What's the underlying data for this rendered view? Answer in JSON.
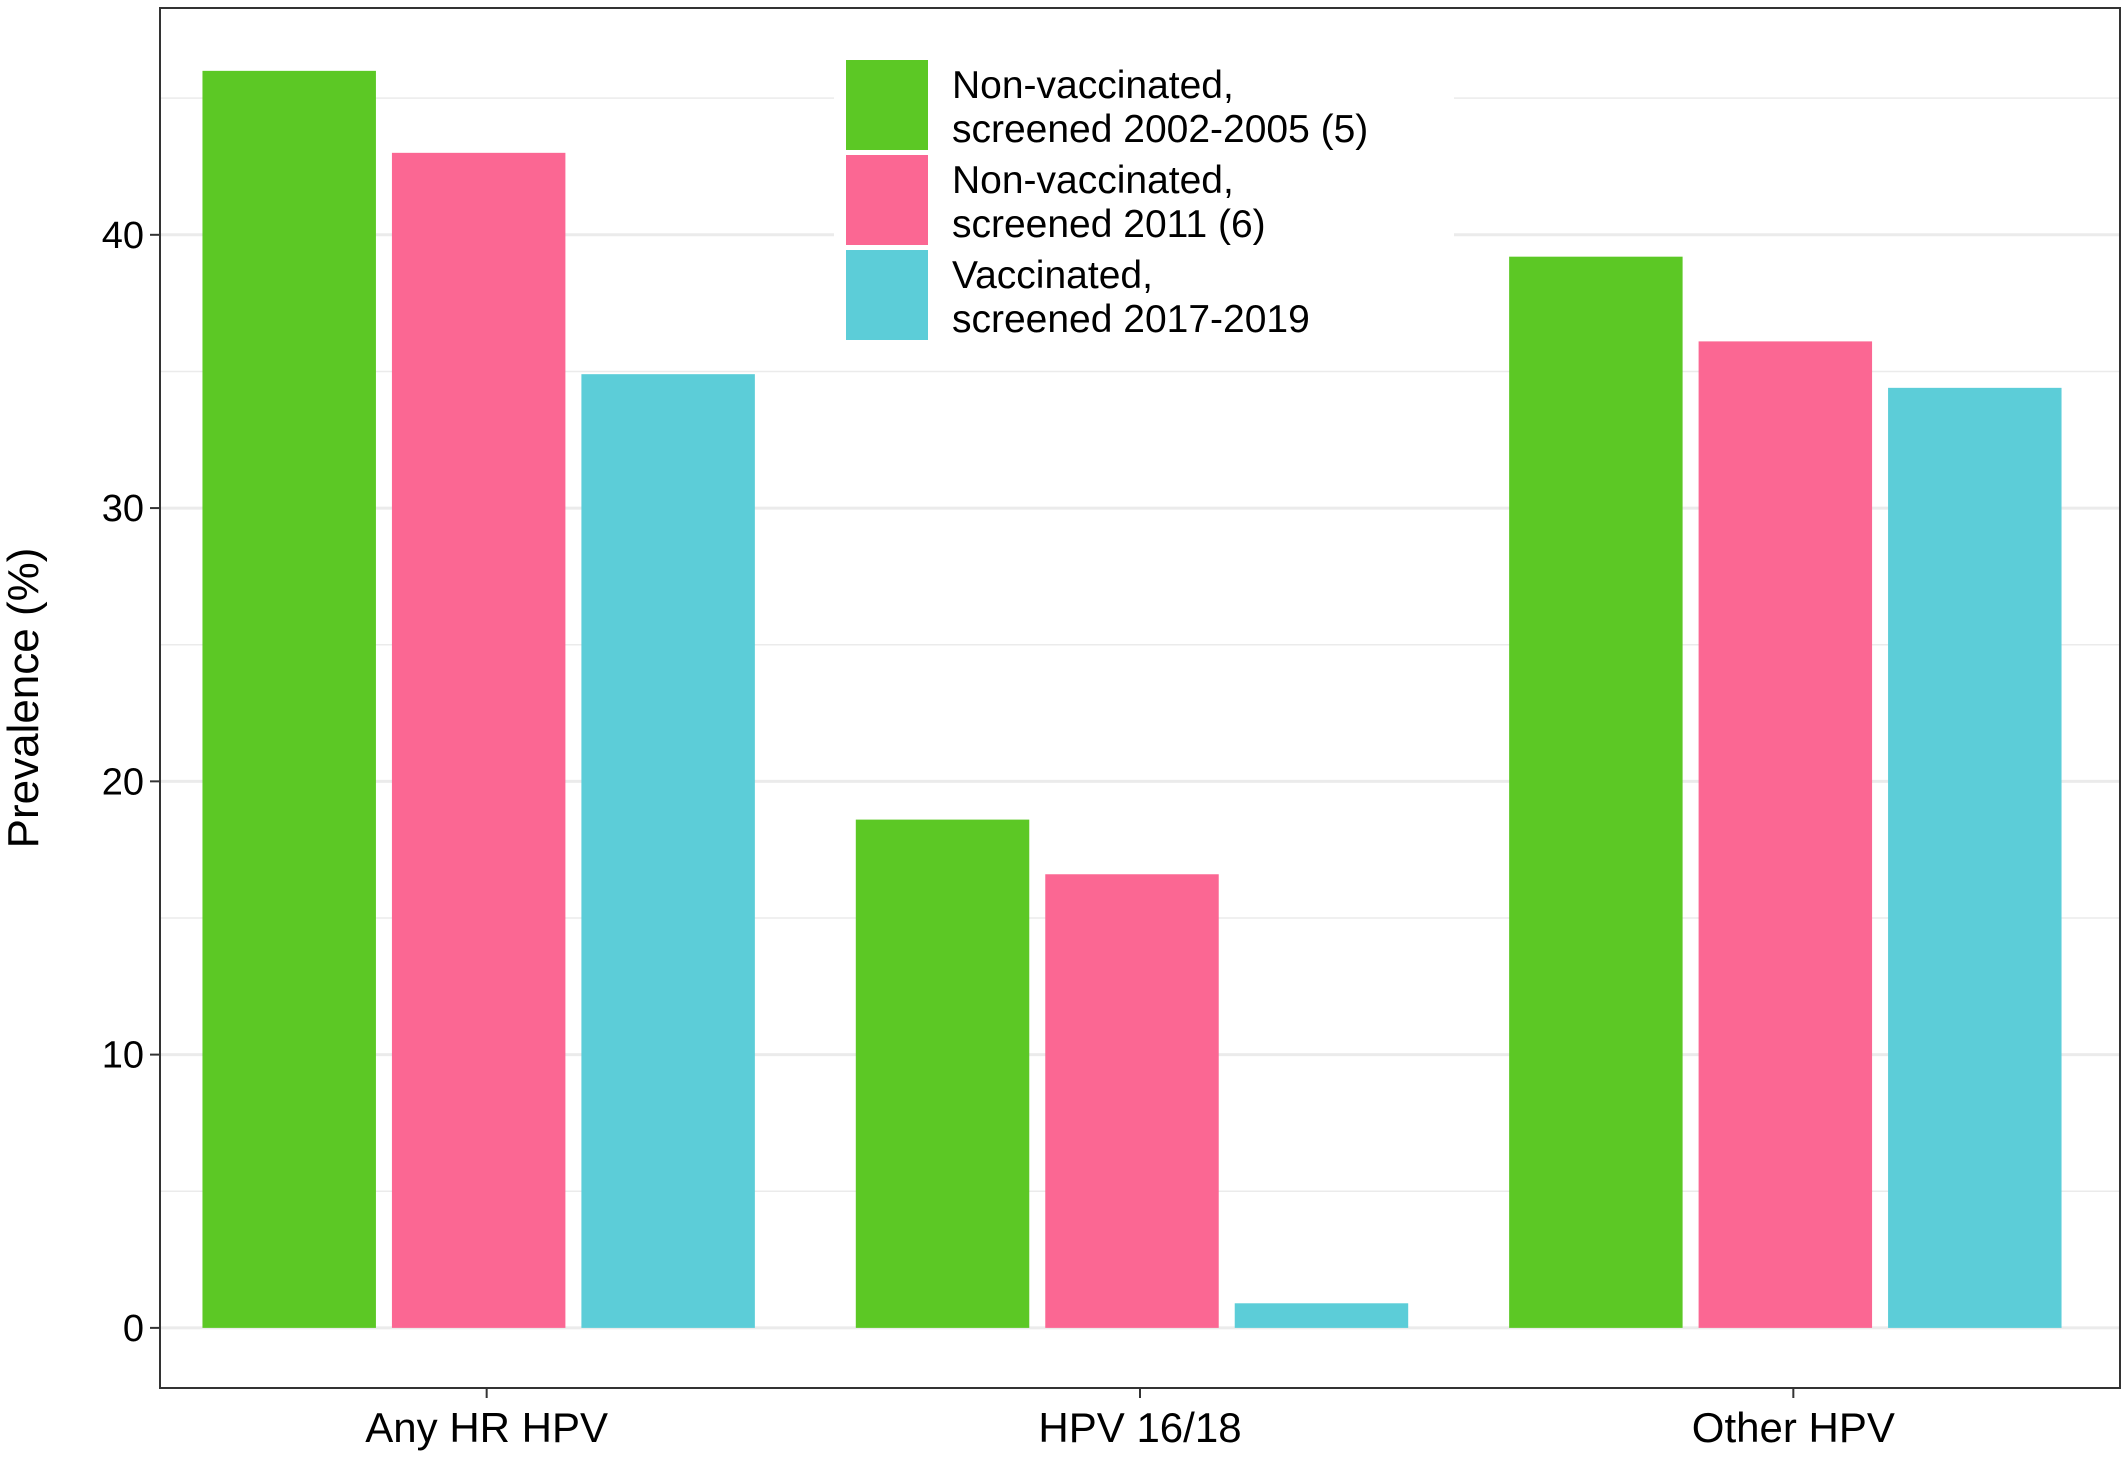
{
  "chart_data": {
    "type": "bar",
    "title": "",
    "xlabel": "",
    "ylabel": "Prevalence (%)",
    "categories": [
      "Any HR HPV",
      "HPV 16/18",
      "Other HPV"
    ],
    "series": [
      {
        "name": "Non-vaccinated, screened 2002-2005 (5)",
        "legend_lines": [
          "Non-vaccinated,",
          "screened 2002-2005 (5)"
        ],
        "color": "#5cc825",
        "values": [
          46.0,
          18.6,
          39.2
        ]
      },
      {
        "name": "Non-vaccinated, screened 2011 (6)",
        "legend_lines": [
          "Non-vaccinated,",
          "screened 2011 (6)"
        ],
        "color": "#fb6793",
        "values": [
          43.0,
          16.6,
          36.1
        ]
      },
      {
        "name": "Vaccinated, screened 2017-2019",
        "legend_lines": [
          "Vaccinated,",
          "screened 2017-2019"
        ],
        "color": "#5ccdd8",
        "values": [
          34.9,
          0.9,
          34.4
        ]
      }
    ],
    "ylim": [
      -2.2,
      48.3
    ],
    "yticks": [
      0,
      10,
      20,
      30,
      40
    ],
    "ytick_labels": [
      "0",
      "10",
      "20",
      "30",
      "40"
    ],
    "minor_grid": [
      5,
      15,
      25,
      35,
      45
    ],
    "grid": true,
    "legend_position": "top-center"
  }
}
